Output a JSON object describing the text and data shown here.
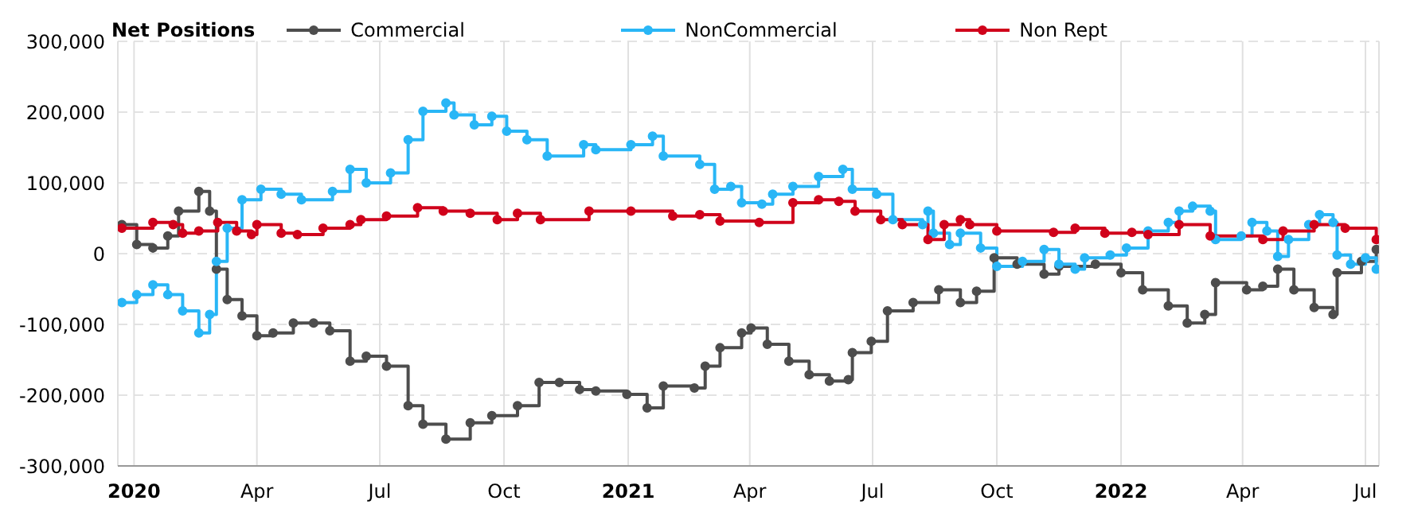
{
  "chart_data": {
    "type": "step",
    "legend_title": "Net Positions",
    "legend": "top",
    "grid": true,
    "marker": "circle",
    "line_style": "solid",
    "xlim": [
      "2019-12-20",
      "2022-07-11"
    ],
    "xticks": [
      {
        "value": "2020-01-01",
        "label": "2020"
      },
      {
        "value": "2020-04-01",
        "label": "Apr"
      },
      {
        "value": "2020-07-01",
        "label": "Jul"
      },
      {
        "value": "2020-10-01",
        "label": "Oct"
      },
      {
        "value": "2021-01-01",
        "label": "2021"
      },
      {
        "value": "2021-04-01",
        "label": "Apr"
      },
      {
        "value": "2021-07-01",
        "label": "Jul"
      },
      {
        "value": "2021-10-01",
        "label": "Oct"
      },
      {
        "value": "2022-01-01",
        "label": "2022"
      },
      {
        "value": "2022-04-01",
        "label": "Apr"
      },
      {
        "value": "2022-07-01",
        "label": "Jul"
      }
    ],
    "ylim": [
      -300000,
      300000
    ],
    "yticks": [
      {
        "value": -300000,
        "label": "-300,000"
      },
      {
        "value": -200000,
        "label": "-200,000"
      },
      {
        "value": -100000,
        "label": "-100,000"
      },
      0,
      {
        "value": 100000,
        "label": "100,000"
      },
      {
        "value": 200000,
        "label": "200,000"
      },
      {
        "value": 300000,
        "label": "300,000"
      }
    ],
    "series": [
      {
        "name": "Commercial",
        "color": "#4d4d4d",
        "x": [
          "2019-12-23",
          "2020-01-03",
          "2020-01-15",
          "2020-01-26",
          "2020-02-03",
          "2020-02-18",
          "2020-02-26",
          "2020-03-02",
          "2020-03-10",
          "2020-03-21",
          "2020-04-01",
          "2020-04-13",
          "2020-04-28",
          "2020-05-13",
          "2020-05-25",
          "2020-06-09",
          "2020-06-21",
          "2020-07-06",
          "2020-07-22",
          "2020-08-02",
          "2020-08-19",
          "2020-09-06",
          "2020-09-22",
          "2020-10-11",
          "2020-10-27",
          "2020-11-11",
          "2020-11-26",
          "2020-12-08",
          "2020-12-31",
          "2021-01-15",
          "2021-01-27",
          "2021-02-19",
          "2021-02-27",
          "2021-03-10",
          "2021-03-26",
          "2021-04-02",
          "2021-04-14",
          "2021-04-30",
          "2021-05-15",
          "2021-05-30",
          "2021-06-13",
          "2021-06-16",
          "2021-06-30",
          "2021-07-12",
          "2021-07-31",
          "2021-08-19",
          "2021-09-04",
          "2021-09-16",
          "2021-09-29",
          "2021-10-16",
          "2021-11-05",
          "2021-11-16",
          "2021-12-13",
          "2022-01-01",
          "2022-01-17",
          "2022-02-05",
          "2022-02-19",
          "2022-03-04",
          "2022-03-12",
          "2022-04-04",
          "2022-04-16",
          "2022-04-27",
          "2022-05-09",
          "2022-05-24",
          "2022-06-07",
          "2022-06-10",
          "2022-06-28",
          "2022-07-09"
        ],
        "values": [
          41000,
          13000,
          8000,
          25000,
          60000,
          88000,
          60000,
          -22000,
          -65000,
          -88000,
          -116000,
          -112000,
          -98000,
          -98000,
          -109000,
          -152000,
          -145000,
          -159000,
          -215000,
          -241000,
          -262000,
          -239000,
          -229000,
          -215000,
          -182000,
          -182000,
          -192000,
          -194000,
          -199000,
          -218000,
          -187000,
          -190000,
          -159000,
          -133000,
          -112000,
          -105000,
          -128000,
          -152000,
          -171000,
          -180000,
          -178000,
          -140000,
          -124000,
          -81000,
          -69000,
          -51000,
          -69000,
          -53000,
          -6000,
          -15000,
          -29000,
          -18000,
          -15000,
          -27000,
          -51000,
          -74000,
          -98000,
          -86000,
          -41000,
          -51000,
          -46000,
          -22000,
          -51000,
          -76000,
          -86000,
          -27000,
          -11000,
          6000
        ]
      },
      {
        "name": "NonCommercial",
        "color": "#29b6f6",
        "x": [
          "2019-12-23",
          "2020-01-03",
          "2020-01-15",
          "2020-01-26",
          "2020-02-06",
          "2020-02-18",
          "2020-02-26",
          "2020-03-02",
          "2020-03-10",
          "2020-03-21",
          "2020-04-04",
          "2020-04-19",
          "2020-05-04",
          "2020-05-27",
          "2020-06-09",
          "2020-06-21",
          "2020-07-09",
          "2020-07-22",
          "2020-08-02",
          "2020-08-19",
          "2020-08-25",
          "2020-09-09",
          "2020-09-22",
          "2020-10-03",
          "2020-10-18",
          "2020-11-02",
          "2020-11-29",
          "2020-12-08",
          "2021-01-03",
          "2021-01-19",
          "2021-01-27",
          "2021-02-23",
          "2021-03-06",
          "2021-03-18",
          "2021-03-26",
          "2021-04-10",
          "2021-04-18",
          "2021-05-03",
          "2021-05-22",
          "2021-06-09",
          "2021-06-16",
          "2021-07-04",
          "2021-07-16",
          "2021-08-07",
          "2021-08-11",
          "2021-08-15",
          "2021-08-27",
          "2021-09-04",
          "2021-09-19",
          "2021-10-01",
          "2021-10-20",
          "2021-11-05",
          "2021-11-16",
          "2021-11-28",
          "2021-12-05",
          "2021-12-24",
          "2022-01-05",
          "2022-01-21",
          "2022-02-05",
          "2022-02-13",
          "2022-02-23",
          "2022-03-08",
          "2022-03-12",
          "2022-03-31",
          "2022-04-08",
          "2022-04-19",
          "2022-04-27",
          "2022-05-05",
          "2022-05-20",
          "2022-05-28",
          "2022-06-07",
          "2022-06-10",
          "2022-06-20",
          "2022-07-01",
          "2022-07-09"
        ],
        "values": [
          -69000,
          -58000,
          -44000,
          -58000,
          -81000,
          -112000,
          -86000,
          -11000,
          36000,
          76000,
          91000,
          84000,
          76000,
          88000,
          119000,
          100000,
          114000,
          161000,
          201000,
          213000,
          196000,
          182000,
          194000,
          173000,
          161000,
          138000,
          154000,
          147000,
          154000,
          166000,
          138000,
          126000,
          91000,
          95000,
          72000,
          70000,
          84000,
          95000,
          109000,
          119000,
          91000,
          84000,
          48000,
          41000,
          60000,
          29000,
          13000,
          29000,
          8000,
          -18000,
          -11000,
          6000,
          -15000,
          -22000,
          -6000,
          -2000,
          8000,
          32000,
          44000,
          60000,
          67000,
          60000,
          20000,
          25000,
          44000,
          32000,
          -4000,
          20000,
          41000,
          55000,
          44000,
          -2000,
          -15000,
          -6000,
          -22000
        ]
      },
      {
        "name": "Non Rept",
        "color": "#d0021b",
        "x": [
          "2019-12-23",
          "2020-01-15",
          "2020-01-30",
          "2020-02-06",
          "2020-02-18",
          "2020-03-03",
          "2020-03-17",
          "2020-03-28",
          "2020-04-01",
          "2020-04-19",
          "2020-05-01",
          "2020-05-20",
          "2020-06-09",
          "2020-06-17",
          "2020-07-06",
          "2020-07-29",
          "2020-08-17",
          "2020-09-06",
          "2020-09-26",
          "2020-10-11",
          "2020-10-28",
          "2020-12-03",
          "2021-01-03",
          "2021-02-03",
          "2021-02-23",
          "2021-03-10",
          "2021-04-08",
          "2021-05-03",
          "2021-05-22",
          "2021-06-06",
          "2021-06-18",
          "2021-07-07",
          "2021-07-23",
          "2021-08-11",
          "2021-08-23",
          "2021-09-04",
          "2021-09-11",
          "2021-10-01",
          "2021-11-12",
          "2021-11-28",
          "2021-12-20",
          "2022-01-09",
          "2022-01-21",
          "2022-02-13",
          "2022-03-08",
          "2022-04-16",
          "2022-05-01",
          "2022-05-24",
          "2022-06-16",
          "2022-07-09"
        ],
        "values": [
          36000,
          44000,
          41000,
          29000,
          32000,
          44000,
          32000,
          27000,
          41000,
          29000,
          27000,
          36000,
          41000,
          48000,
          53000,
          65000,
          60000,
          57000,
          48000,
          57000,
          48000,
          60000,
          60000,
          53000,
          55000,
          46000,
          44000,
          72000,
          76000,
          74000,
          60000,
          48000,
          41000,
          20000,
          41000,
          48000,
          41000,
          32000,
          30000,
          36000,
          29000,
          30000,
          27000,
          41000,
          25000,
          20000,
          32000,
          41000,
          36000,
          20000
        ]
      }
    ]
  }
}
